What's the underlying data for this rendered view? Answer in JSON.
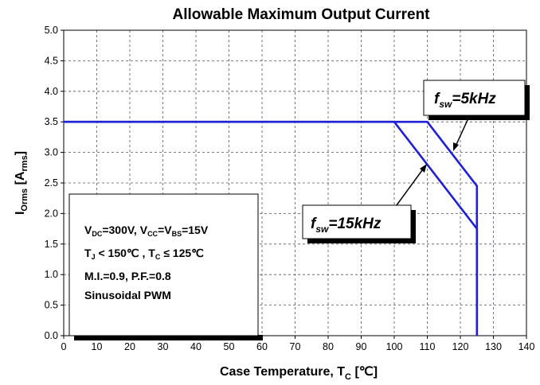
{
  "chart_data": {
    "type": "line",
    "title": "Allowable Maximum Output Current",
    "xlabel": "Case Temperature, T",
    "xlabel_sub": "C",
    "xlabel_unit": "[℃]",
    "ylabel": "I",
    "ylabel_sub": "Orms",
    "ylabel_unit_open": "[A",
    "ylabel_unit_sub": "rms",
    "ylabel_unit_close": "]",
    "xlim": [
      0,
      140
    ],
    "ylim": [
      0,
      5.0
    ],
    "x_ticks": [
      0,
      10,
      20,
      30,
      40,
      50,
      60,
      70,
      80,
      90,
      100,
      110,
      120,
      130,
      140
    ],
    "y_ticks": [
      "0.0",
      "0.5",
      "1.0",
      "1.5",
      "2.0",
      "2.5",
      "3.0",
      "3.5",
      "4.0",
      "4.5",
      "5.0"
    ],
    "grid": "dashed",
    "series": [
      {
        "name": "fsw=5kHz",
        "color": "#1f1fd6",
        "points": [
          [
            0,
            3.5
          ],
          [
            110,
            3.5
          ],
          [
            125,
            2.45
          ],
          [
            125,
            0
          ]
        ]
      },
      {
        "name": "fsw=15kHz",
        "color": "#1f1fd6",
        "points": [
          [
            0,
            3.5
          ],
          [
            100,
            3.5
          ],
          [
            125,
            1.75
          ],
          [
            125,
            0
          ]
        ]
      }
    ],
    "conditions_box": {
      "line1": {
        "a": "V",
        "a_sub": "DC",
        "b": "=300V, V",
        "b_sub": "CC",
        "c": "=V",
        "c_sub": "BS",
        "d": "=15V"
      },
      "line2": {
        "a": "T",
        "a_sub": "J",
        "b": " < 150℃ , T",
        "b_sub": "C",
        "c": " ≤ 125℃"
      },
      "line3": "M.I.=0.9, P.F.=0.8",
      "line4": "Sinusoidal PWM"
    },
    "callouts": [
      {
        "f": "f",
        "sub": "sw",
        "rest": "=5kHz",
        "points_to": [
          116,
          3.1
        ]
      },
      {
        "f": "f",
        "sub": "sw",
        "rest": "=15kHz",
        "points_to": [
          108,
          3.0
        ]
      }
    ]
  }
}
